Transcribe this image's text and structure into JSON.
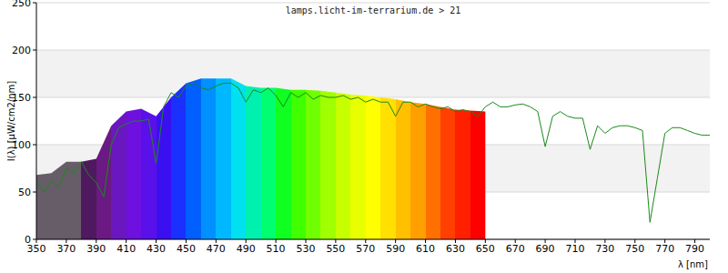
{
  "chart_data": {
    "type": "line",
    "title": "lamps.licht-im-terrarium.de > 21",
    "xlabel": "λ [nm]",
    "ylabel": "I(λ) [µW/cm2/nm]",
    "xlim": [
      350,
      800
    ],
    "xticks": [
      350,
      370,
      390,
      410,
      430,
      450,
      470,
      490,
      510,
      530,
      550,
      570,
      590,
      610,
      630,
      650,
      670,
      690,
      710,
      730,
      750,
      770,
      790
    ],
    "ylim": [
      0,
      250
    ],
    "yticks": [
      0,
      50,
      100,
      150,
      200,
      250
    ],
    "grid": true,
    "series": [
      {
        "type": "area",
        "x": [
          350,
          360,
          370,
          380,
          390,
          400,
          410,
          420,
          430,
          440,
          450,
          460,
          470,
          480,
          490,
          500,
          510,
          520,
          530,
          540,
          550,
          560,
          570,
          580,
          590,
          600,
          610,
          620,
          630,
          640,
          650
        ],
        "values": [
          68,
          70,
          82,
          82,
          85,
          120,
          135,
          138,
          130,
          150,
          165,
          170,
          170,
          170,
          162,
          160,
          160,
          158,
          158,
          157,
          155,
          153,
          152,
          150,
          148,
          145,
          143,
          140,
          137,
          136,
          135
        ],
        "colors": [
          "#675d68",
          "#675d68",
          "#675d68",
          "#4f1960",
          "#6a1a82",
          "#6b17c0",
          "#6e10e0",
          "#5a10e8",
          "#3a10f0",
          "#1a30ff",
          "#0060ff",
          "#0090ff",
          "#00b8ff",
          "#00e0f0",
          "#00f0b0",
          "#00ff70",
          "#10ff20",
          "#40ff00",
          "#70ff00",
          "#a0ff00",
          "#c8ff00",
          "#e8ff00",
          "#ffff00",
          "#ffe000",
          "#ffc000",
          "#ffa000",
          "#ff7000",
          "#ff4000",
          "#ff2000",
          "#ff0000",
          "#ff0000"
        ]
      },
      {
        "type": "line",
        "color": "#1a8a1a",
        "x": [
          350,
          355,
          360,
          365,
          370,
          375,
          380,
          385,
          390,
          395,
          400,
          405,
          410,
          415,
          420,
          425,
          430,
          435,
          440,
          445,
          450,
          455,
          460,
          465,
          470,
          475,
          480,
          485,
          490,
          495,
          500,
          505,
          510,
          515,
          520,
          525,
          530,
          535,
          540,
          545,
          550,
          555,
          560,
          565,
          570,
          575,
          580,
          585,
          590,
          595,
          600,
          605,
          610,
          615,
          620,
          625,
          630,
          635,
          640,
          645,
          650,
          655,
          660,
          665,
          670,
          675,
          680,
          685,
          690,
          695,
          700,
          705,
          710,
          715,
          720,
          725,
          730,
          735,
          740,
          745,
          750,
          755,
          760,
          765,
          770,
          775,
          780,
          785,
          790,
          795,
          800
        ],
        "values": [
          62,
          50,
          62,
          55,
          75,
          70,
          82,
          68,
          60,
          45,
          100,
          118,
          122,
          125,
          125,
          127,
          80,
          140,
          155,
          150,
          162,
          165,
          160,
          158,
          162,
          165,
          165,
          160,
          145,
          158,
          155,
          160,
          152,
          140,
          155,
          150,
          155,
          148,
          152,
          150,
          150,
          152,
          148,
          150,
          145,
          148,
          145,
          145,
          130,
          145,
          145,
          140,
          143,
          140,
          138,
          140,
          135,
          137,
          135,
          130,
          140,
          145,
          140,
          140,
          142,
          143,
          140,
          135,
          98,
          130,
          135,
          130,
          128,
          128,
          95,
          120,
          112,
          118,
          120,
          120,
          118,
          115,
          18,
          65,
          112,
          118,
          118,
          115,
          112,
          110,
          110
        ]
      }
    ]
  }
}
